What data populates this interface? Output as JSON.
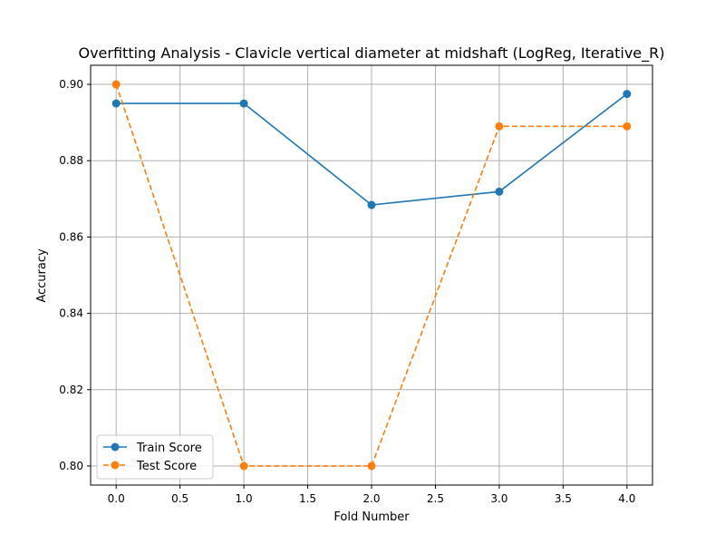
{
  "chart_data": {
    "type": "line",
    "title": "Overfitting Analysis - Clavicle vertical diameter at midshaft (LogReg, Iterative_R)",
    "xlabel": "Fold Number",
    "ylabel": "Accuracy",
    "xlim": [
      -0.2,
      4.2
    ],
    "ylim": [
      0.795,
      0.905
    ],
    "x_ticks": [
      0.0,
      0.5,
      1.0,
      1.5,
      2.0,
      2.5,
      3.0,
      3.5,
      4.0
    ],
    "x_tick_labels": [
      "0.0",
      "0.5",
      "1.0",
      "1.5",
      "2.0",
      "2.5",
      "3.0",
      "3.5",
      "4.0"
    ],
    "y_ticks": [
      0.8,
      0.82,
      0.84,
      0.86,
      0.88,
      0.9
    ],
    "y_tick_labels": [
      "0.80",
      "0.82",
      "0.84",
      "0.86",
      "0.88",
      "0.90"
    ],
    "grid": true,
    "legend_position": "lower-left",
    "x": [
      0,
      1,
      2,
      3,
      4
    ],
    "series": [
      {
        "name": "Train Score",
        "values": [
          0.895,
          0.895,
          0.8684,
          0.8719,
          0.8975
        ],
        "color": "#1f77b4",
        "line_style": "solid",
        "marker": "circle"
      },
      {
        "name": "Test Score",
        "values": [
          0.9,
          0.8,
          0.8,
          0.889,
          0.889
        ],
        "color": "#ff7f0e",
        "line_style": "dashed",
        "marker": "circle"
      }
    ]
  }
}
